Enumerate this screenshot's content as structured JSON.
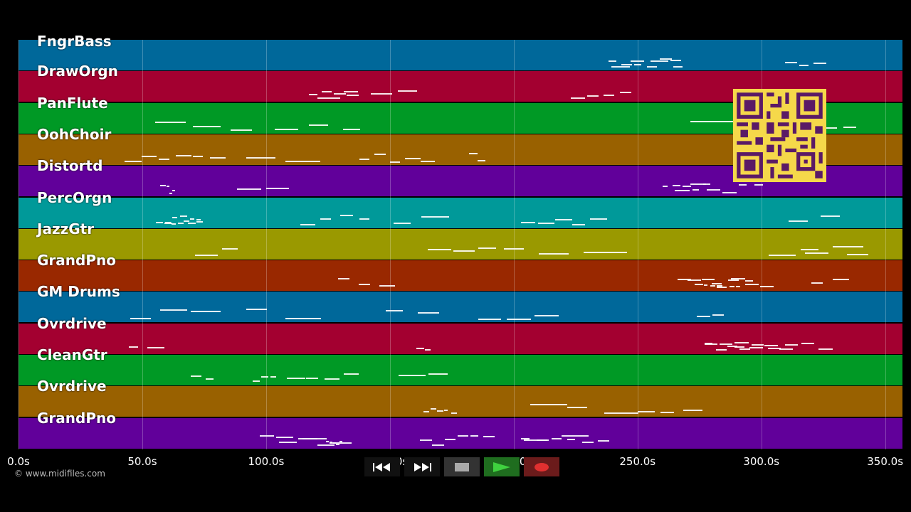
{
  "tracks": [
    {
      "name": "FngrBass",
      "color": "#00689a"
    },
    {
      "name": "DrawOrgn",
      "color": "#a30030"
    },
    {
      "name": "PanFlute",
      "color": "#009925"
    },
    {
      "name": "OohChoir",
      "color": "#996100"
    },
    {
      "name": "Distortd",
      "color": "#61009a"
    },
    {
      "name": "PercOrgn",
      "color": "#009999"
    },
    {
      "name": "JazzGtr",
      "color": "#9a9900"
    },
    {
      "name": "GrandPno",
      "color": "#992800"
    },
    {
      "name": "GM Drums",
      "color": "#00689a"
    },
    {
      "name": "Ovrdrive",
      "color": "#a30030"
    },
    {
      "name": "CleanGtr",
      "color": "#009925"
    },
    {
      "name": "Ovrdrive",
      "color": "#996100"
    },
    {
      "name": "GrandPno",
      "color": "#61009a"
    }
  ],
  "time_axis": {
    "unit": "s",
    "min": 0,
    "max": 357,
    "ticks": [
      "0.0s",
      "50.0s",
      "100.0s",
      "150.0s",
      "200.0s",
      "250.0s",
      "300.0s",
      "350.0s"
    ],
    "tick_values": [
      0,
      50,
      100,
      150,
      200,
      250,
      300,
      350
    ]
  },
  "copyright": "© www.midifiles.com",
  "transport": {
    "rewind_icon": "rewind-icon",
    "fast_forward_icon": "fast-forward-icon",
    "stop_icon": "stop-icon",
    "play_icon": "play-icon",
    "record_icon": "record-icon",
    "play_color": "#2db82d",
    "record_color": "#e03030"
  },
  "qr_code_color": "#f5d84a"
}
